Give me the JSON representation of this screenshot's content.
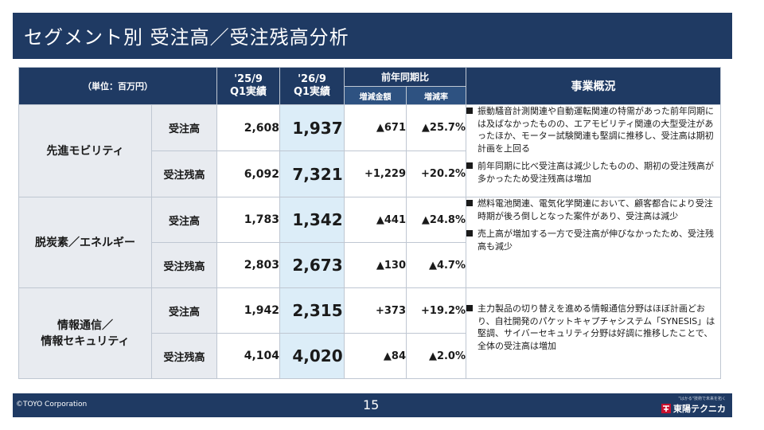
{
  "title": "セグメント別 受注高／受注残高分析",
  "table": {
    "unit_label": "（単位：百万円）",
    "col_prev_year": "'25/9",
    "col_prev_label": "Q1実績",
    "col_cur_year": "'26/9",
    "col_cur_label": "Q1実績",
    "col_yoy": "前年同期比",
    "col_diff": "増減金額",
    "col_rate": "増減率",
    "col_overview": "事業概況",
    "segments": [
      {
        "name_lines": [
          "先進モビリティ"
        ],
        "rows": [
          {
            "type": "受注高",
            "prev": "2,608",
            "cur": "1,937",
            "diff": "▲671",
            "rate": "▲25.7%"
          },
          {
            "type": "受注残高",
            "prev": "6,092",
            "cur": "7,321",
            "diff": "+1,229",
            "rate": "+20.2%"
          }
        ],
        "bullets": [
          "振動騒音計測関連や自動運転関連の特需があった前年同期には及ばなかったものの、エアモビリティ関連の大型受注があったほか、モーター試験関連も堅調に推移し、受注高は期初計画を上回る",
          "前年同期に比べ受注高は減少したものの、期初の受注残高が多かったため受注残高は増加"
        ]
      },
      {
        "name_lines": [
          "脱炭素／エネルギー"
        ],
        "rows": [
          {
            "type": "受注高",
            "prev": "1,783",
            "cur": "1,342",
            "diff": "▲441",
            "rate": "▲24.8%"
          },
          {
            "type": "受注残高",
            "prev": "2,803",
            "cur": "2,673",
            "diff": "▲130",
            "rate": "▲4.7%"
          }
        ],
        "bullets": [
          "燃料電池関連、電気化学関連において、顧客都合により受注時期が後ろ倒しとなった案件があり、受注高は減少",
          "売上高が増加する一方で受注高が伸びなかったため、受注残高も減少"
        ]
      },
      {
        "name_lines": [
          "情報通信／",
          "情報セキュリティ"
        ],
        "rows": [
          {
            "type": "受注高",
            "prev": "1,942",
            "cur": "2,315",
            "diff": "+373",
            "rate": "+19.2%"
          },
          {
            "type": "受注残高",
            "prev": "4,104",
            "cur": "4,020",
            "diff": "▲84",
            "rate": "▲2.0%"
          }
        ],
        "bullets": [
          "主力製品の切り替えを進める情報通信分野はほぼ計画どおり、自社開発のパケットキャプチャシステム「SYNESIS」は堅調、サイバーセキュリティ分野は好調に推移したことで、全体の受注高は増加"
        ]
      }
    ]
  },
  "footer": {
    "copyright": "©TOYO Corporation",
    "page": "15",
    "tagline": "\"はかる\"技術で未来を拓く",
    "logo_text": "東陽テクニカ"
  },
  "colors": {
    "header_navy": "#1f3a63",
    "subheader_blue": "#2e5281",
    "current_col": "#dcedf8",
    "label_gray": "#e8ebf0"
  }
}
